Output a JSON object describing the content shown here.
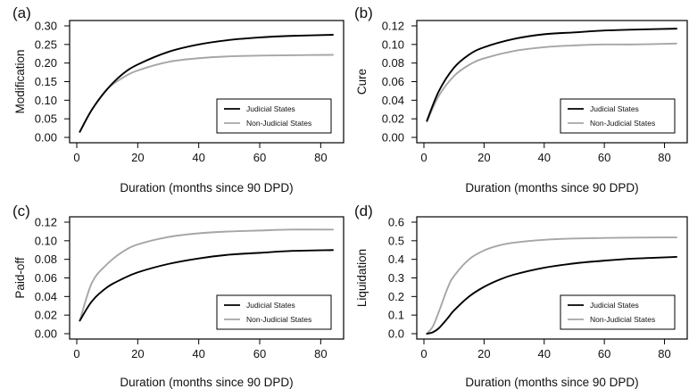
{
  "chart_data": [
    {
      "type": "line",
      "panel_label": "(a)",
      "xlabel": "Duration (months since 90 DPD)",
      "ylabel": "Modification",
      "xlim": [
        0,
        84
      ],
      "ylim": [
        0,
        0.3
      ],
      "xticks": [
        "0",
        "20",
        "40",
        "60",
        "80"
      ],
      "yticks": [
        "0.00",
        "0.05",
        "0.10",
        "0.15",
        "0.20",
        "0.25",
        "0.30"
      ],
      "legend_position": "bottom-right",
      "series": [
        {
          "name": "Judicial States",
          "color": "#000000",
          "x": [
            1,
            5,
            10,
            15,
            20,
            30,
            40,
            50,
            60,
            70,
            84
          ],
          "y": [
            0.015,
            0.075,
            0.13,
            0.17,
            0.196,
            0.23,
            0.25,
            0.262,
            0.269,
            0.273,
            0.276
          ]
        },
        {
          "name": "Non-Judicial States",
          "color": "#a6a6a6",
          "x": [
            1,
            5,
            10,
            15,
            20,
            30,
            40,
            50,
            60,
            70,
            84
          ],
          "y": [
            0.015,
            0.075,
            0.13,
            0.16,
            0.18,
            0.203,
            0.213,
            0.218,
            0.22,
            0.221,
            0.222
          ]
        }
      ]
    },
    {
      "type": "line",
      "panel_label": "(b)",
      "xlabel": "Duration (months since 90 DPD)",
      "ylabel": "Cure",
      "xlim": [
        0,
        84
      ],
      "ylim": [
        0,
        0.12
      ],
      "xticks": [
        "0",
        "20",
        "40",
        "60",
        "80"
      ],
      "yticks": [
        "0.00",
        "0.02",
        "0.04",
        "0.06",
        "0.08",
        "0.10",
        "0.12"
      ],
      "legend_position": "bottom-right",
      "series": [
        {
          "name": "Judicial States",
          "color": "#000000",
          "x": [
            1,
            5,
            10,
            15,
            20,
            30,
            40,
            50,
            60,
            70,
            84
          ],
          "y": [
            0.018,
            0.05,
            0.075,
            0.089,
            0.097,
            0.106,
            0.111,
            0.113,
            0.115,
            0.116,
            0.117
          ]
        },
        {
          "name": "Non-Judicial States",
          "color": "#a6a6a6",
          "x": [
            1,
            5,
            10,
            15,
            20,
            30,
            40,
            50,
            60,
            70,
            84
          ],
          "y": [
            0.017,
            0.045,
            0.066,
            0.078,
            0.085,
            0.093,
            0.097,
            0.099,
            0.1,
            0.1,
            0.101
          ]
        }
      ]
    },
    {
      "type": "line",
      "panel_label": "(c)",
      "xlabel": "Duration (months since 90 DPD)",
      "ylabel": "Paid-off",
      "xlim": [
        0,
        84
      ],
      "ylim": [
        0,
        0.12
      ],
      "xticks": [
        "0",
        "20",
        "40",
        "60",
        "80"
      ],
      "yticks": [
        "0.00",
        "0.02",
        "0.04",
        "0.06",
        "0.08",
        "0.10",
        "0.12"
      ],
      "legend_position": "bottom-right",
      "series": [
        {
          "name": "Judicial States",
          "color": "#000000",
          "x": [
            1,
            5,
            10,
            15,
            20,
            30,
            40,
            50,
            60,
            70,
            84
          ],
          "y": [
            0.014,
            0.035,
            0.05,
            0.059,
            0.066,
            0.075,
            0.081,
            0.085,
            0.087,
            0.089,
            0.09
          ]
        },
        {
          "name": "Non-Judicial States",
          "color": "#a6a6a6",
          "x": [
            1,
            5,
            10,
            15,
            20,
            30,
            40,
            50,
            60,
            70,
            84
          ],
          "y": [
            0.014,
            0.055,
            0.075,
            0.088,
            0.096,
            0.104,
            0.108,
            0.11,
            0.111,
            0.112,
            0.112
          ]
        }
      ]
    },
    {
      "type": "line",
      "panel_label": "(d)",
      "xlabel": "Duration (months since 90 DPD)",
      "ylabel": "Liquidation",
      "xlim": [
        0,
        84
      ],
      "ylim": [
        0,
        0.6
      ],
      "xticks": [
        "0",
        "20",
        "40",
        "60",
        "80"
      ],
      "yticks": [
        "0.0",
        "0.1",
        "0.2",
        "0.3",
        "0.4",
        "0.5",
        "0.6"
      ],
      "legend_position": "bottom-right",
      "series": [
        {
          "name": "Judicial States",
          "color": "#000000",
          "x": [
            1,
            3,
            5,
            8,
            10,
            15,
            20,
            25,
            30,
            40,
            50,
            60,
            70,
            84
          ],
          "y": [
            0.0,
            0.008,
            0.03,
            0.085,
            0.125,
            0.2,
            0.252,
            0.29,
            0.318,
            0.355,
            0.378,
            0.393,
            0.404,
            0.413
          ]
        },
        {
          "name": "Non-Judicial States",
          "color": "#a6a6a6",
          "x": [
            1,
            3,
            5,
            8,
            10,
            15,
            20,
            25,
            30,
            40,
            50,
            60,
            70,
            84
          ],
          "y": [
            0.0,
            0.04,
            0.12,
            0.25,
            0.31,
            0.4,
            0.448,
            0.475,
            0.49,
            0.505,
            0.512,
            0.515,
            0.517,
            0.518
          ]
        }
      ]
    }
  ]
}
